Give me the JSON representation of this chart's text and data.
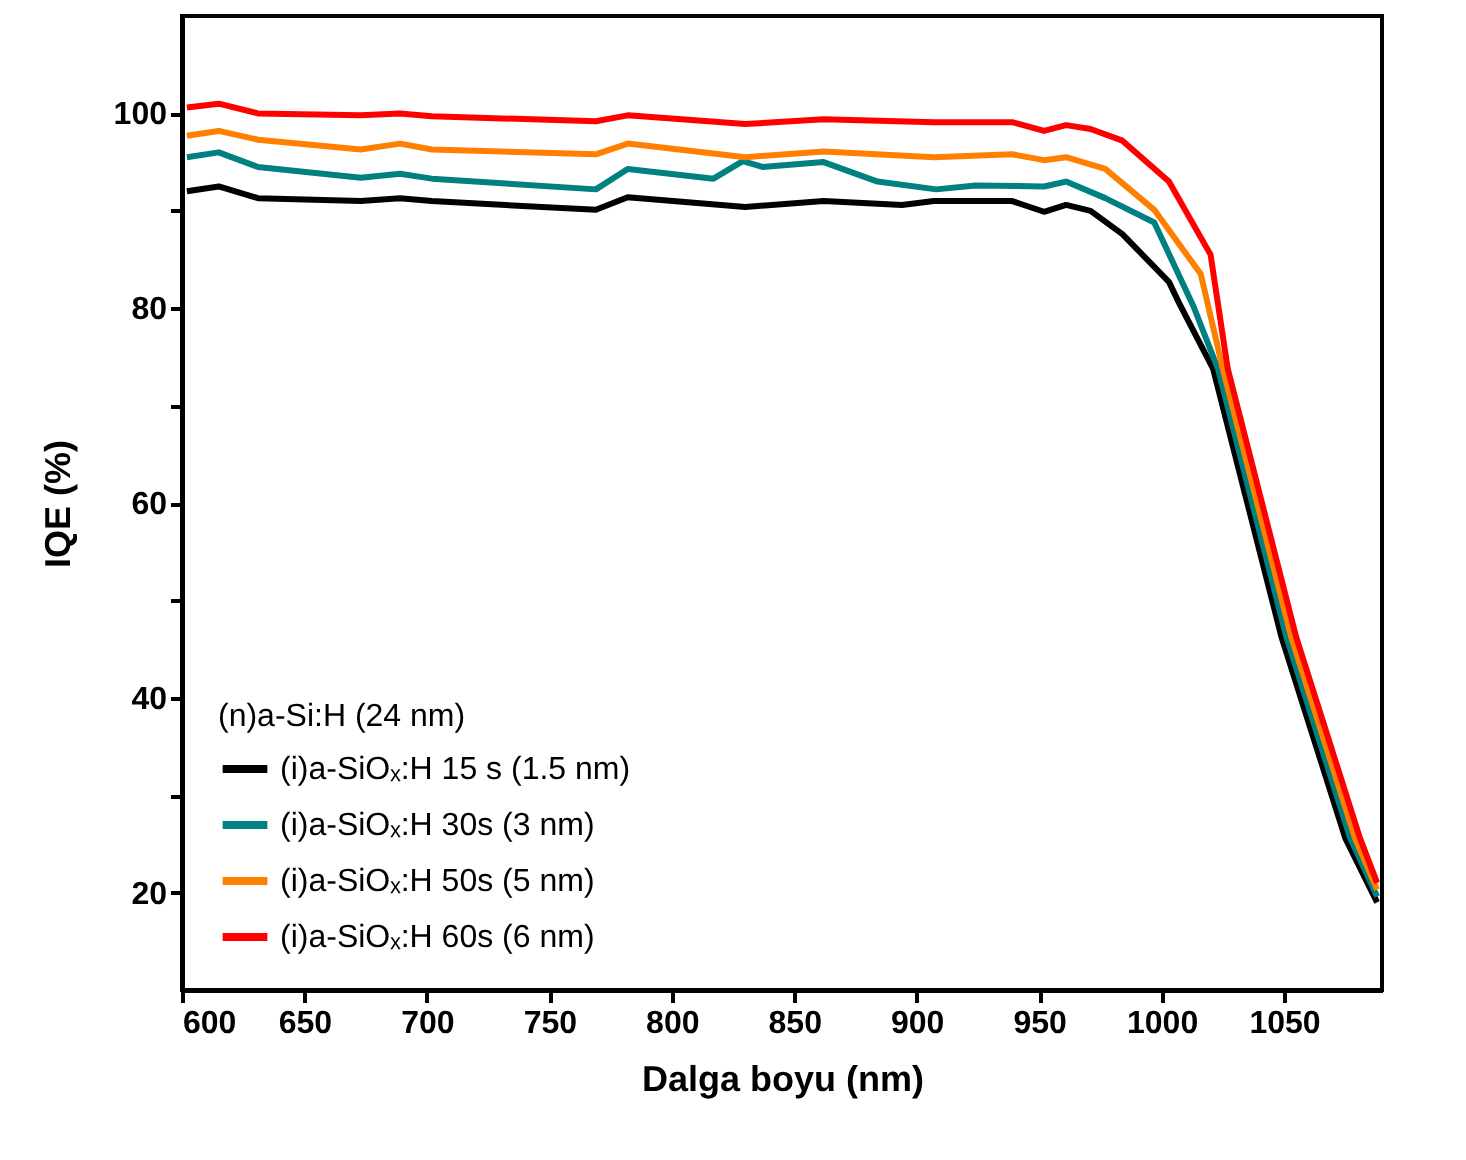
{
  "chart_data": {
    "type": "line",
    "xlabel": "Dalga boyu (nm)",
    "ylabel": "IQE (%)",
    "legend_title": "(n)a-Si:H  (24 nm)",
    "xlim": [
      600,
      1090
    ],
    "xticks": [
      600,
      650,
      700,
      750,
      800,
      850,
      900,
      950,
      1000,
      1050
    ],
    "ylim": [
      10,
      110
    ],
    "yticks": [
      20,
      {
        "value": 30,
        "label": null
      },
      40,
      {
        "value": 50,
        "label": null
      },
      60,
      {
        "value": 70,
        "label": null
      },
      80,
      {
        "value": 90,
        "label": null
      },
      100
    ],
    "grid": false,
    "legend": "bottom left",
    "marker": "none",
    "line_style": "solid",
    "series": [
      {
        "name": "(i)a-SiOₓ:H  15 s (1.5 nm)",
        "color": "#000000",
        "x": [
          602,
          615,
          631,
          673,
          689,
          702,
          769,
          782,
          830,
          862,
          894,
          907,
          939,
          952,
          961,
          971,
          984,
          1003,
          1007,
          1021,
          1035,
          1049,
          1062,
          1075,
          1088
        ],
        "values": [
          92.0,
          92.5,
          91.3,
          91.0,
          91.3,
          91.0,
          90.1,
          91.4,
          90.4,
          91.0,
          90.6,
          91.0,
          91.0,
          89.9,
          90.6,
          90.0,
          87.6,
          82.7,
          80.6,
          73.8,
          60.0,
          46.2,
          35.9,
          25.6,
          19.0
        ]
      },
      {
        "name": "(i)a-SiOₓ:H 30s (3 nm)",
        "color": "#008080",
        "x": [
          602,
          615,
          631,
          673,
          689,
          702,
          769,
          782,
          817,
          829,
          837,
          862,
          884,
          908,
          924,
          952,
          961,
          977,
          997,
          1013,
          1023,
          1037,
          1051,
          1064,
          1077,
          1088
        ],
        "values": [
          95.5,
          96.0,
          94.5,
          93.4,
          93.8,
          93.3,
          92.2,
          94.3,
          93.3,
          95.1,
          94.5,
          95.0,
          93.0,
          92.2,
          92.6,
          92.5,
          93.0,
          91.3,
          88.8,
          80.2,
          73.8,
          60.0,
          46.2,
          35.9,
          25.6,
          19.6
        ]
      },
      {
        "name": "(i)a-SiOₓ:H 50s (5 nm)",
        "color": "#ff8000",
        "x": [
          602,
          615,
          631,
          673,
          689,
          702,
          769,
          782,
          830,
          862,
          907,
          939,
          952,
          961,
          977,
          997,
          1016,
          1025,
          1039,
          1053,
          1066,
          1079,
          1088
        ],
        "values": [
          97.7,
          98.2,
          97.3,
          96.3,
          96.9,
          96.3,
          95.8,
          96.9,
          95.5,
          96.1,
          95.5,
          95.8,
          95.2,
          95.5,
          94.3,
          90.1,
          83.5,
          73.8,
          60.0,
          46.2,
          35.9,
          25.6,
          20.3
        ]
      },
      {
        "name": "(i)a-SiOₓ:H 60s (6 nm)",
        "color": "#ff0000",
        "x": [
          602,
          615,
          631,
          673,
          689,
          702,
          769,
          782,
          830,
          862,
          907,
          939,
          952,
          961,
          971,
          984,
          1003,
          1020,
          1027,
          1041,
          1055,
          1068,
          1081,
          1088
        ],
        "values": [
          100.6,
          101.0,
          100.0,
          99.8,
          100.0,
          99.7,
          99.2,
          99.8,
          98.9,
          99.4,
          99.1,
          99.1,
          98.2,
          98.8,
          98.4,
          97.2,
          93.0,
          85.5,
          73.8,
          60.0,
          46.2,
          35.9,
          25.6,
          21.0
        ]
      }
    ]
  }
}
